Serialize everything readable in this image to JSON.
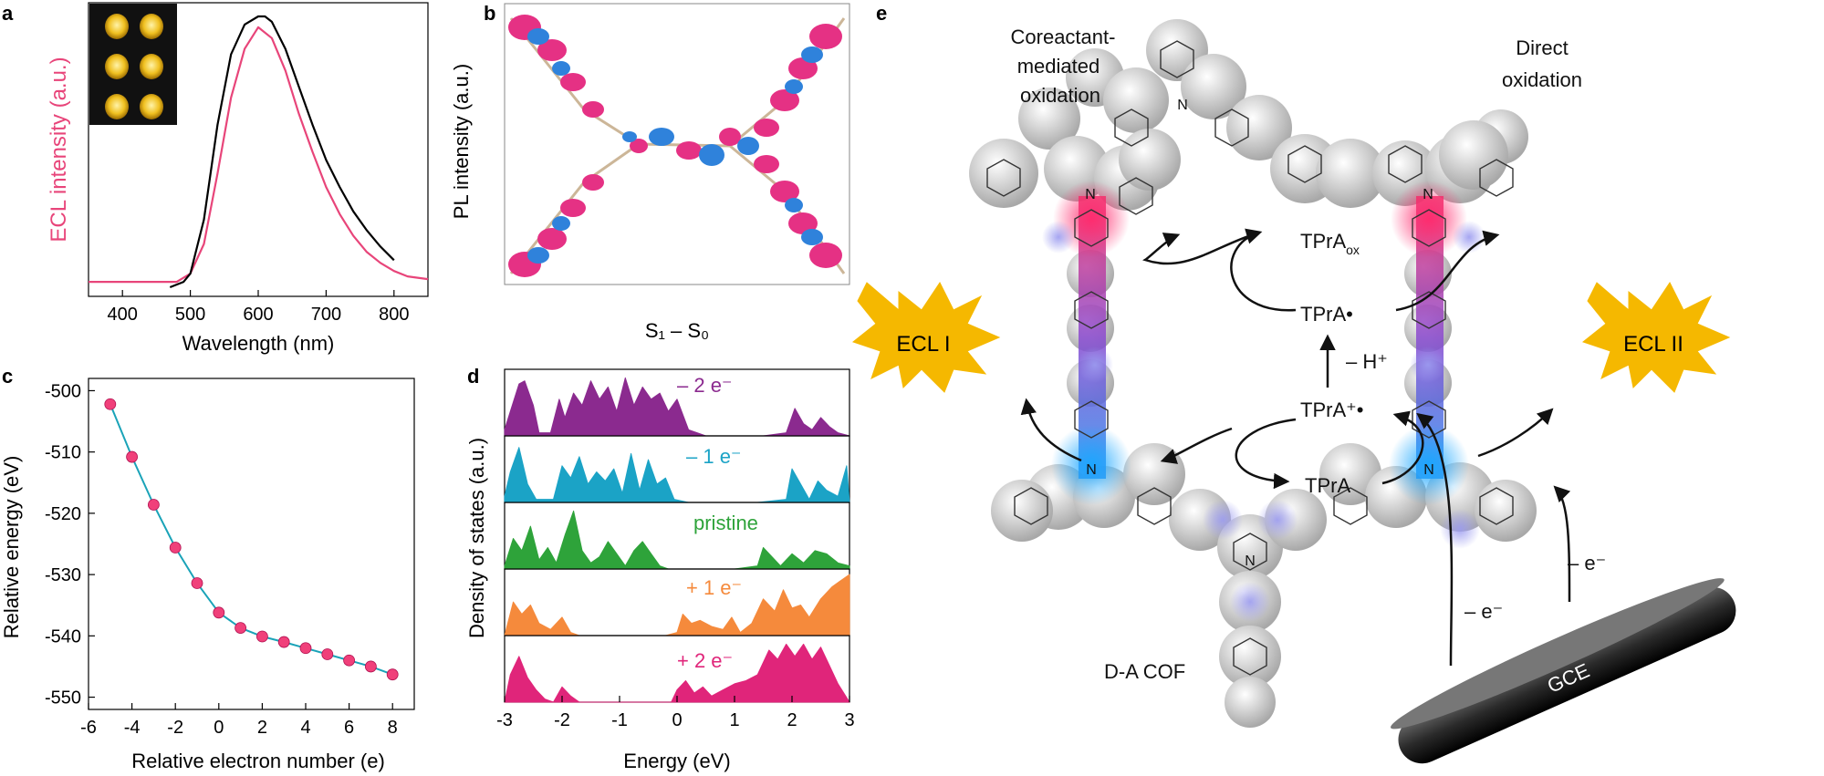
{
  "panels": {
    "a": "a",
    "b": "b",
    "c": "c",
    "d": "d",
    "e": "e"
  },
  "panel_b": {
    "ylabel": "PL intensity (a.u.)",
    "caption": "S₁ – S₀"
  },
  "panel_e": {
    "left_label": "Coreactant-\nmediated\noxidation",
    "right_label": "Direct\noxidation",
    "ecl_left": "ECL I",
    "ecl_right": "ECL II",
    "tpra_ox": "TPrA",
    "tpra_ox_sub": "ox",
    "tpra_rad": "TPrA•",
    "minus_h": "– H⁺",
    "tpra_cation": "TPrA⁺•",
    "tpra": "TPrA",
    "minus_e_1": "– e⁻",
    "minus_e_2": "– e⁻",
    "cof_label": "D-A COF",
    "electrode": "GCE",
    "atom_N": "N",
    "accent": {
      "ecl_fill": "#f5b800",
      "donor": "#29a7e6",
      "acceptor": "#e8336b"
    }
  },
  "chart_data": [
    {
      "id": "a",
      "type": "line",
      "xlabel": "Wavelength (nm)",
      "ylabel": "ECL intensity (a.u.)",
      "xlim": [
        350,
        850
      ],
      "xticks": [
        400,
        500,
        600,
        700,
        800
      ],
      "series": [
        {
          "color": "#e8457a",
          "x": [
            350,
            400,
            450,
            480,
            500,
            520,
            540,
            560,
            580,
            600,
            620,
            640,
            660,
            680,
            700,
            720,
            740,
            760,
            780,
            800,
            820,
            850
          ],
          "y": [
            0.02,
            0.02,
            0.02,
            0.02,
            0.05,
            0.16,
            0.42,
            0.7,
            0.88,
            0.96,
            0.92,
            0.8,
            0.64,
            0.5,
            0.37,
            0.27,
            0.19,
            0.13,
            0.09,
            0.06,
            0.04,
            0.03
          ]
        },
        {
          "color": "#000000",
          "x": [
            470,
            490,
            500,
            520,
            540,
            560,
            580,
            600,
            610,
            620,
            640,
            660,
            680,
            700,
            720,
            740,
            760,
            780,
            800
          ],
          "y": [
            0.0,
            0.02,
            0.05,
            0.25,
            0.6,
            0.86,
            0.97,
            1.0,
            1.0,
            0.98,
            0.88,
            0.74,
            0.6,
            0.47,
            0.37,
            0.28,
            0.21,
            0.15,
            0.1
          ]
        }
      ]
    },
    {
      "id": "c",
      "type": "line",
      "xlabel": "Relative electron number (e)",
      "ylabel": "Relative energy (eV)",
      "xlim": [
        -6,
        9
      ],
      "ylim": [
        -552,
        -498
      ],
      "xticks": [
        -6,
        -4,
        -2,
        0,
        2,
        4,
        6,
        8
      ],
      "yticks": [
        -500,
        -510,
        -520,
        -530,
        -540,
        -550
      ],
      "series": [
        {
          "color": "#1aa3b8",
          "marker_color": "#f0407a",
          "x": [
            -5,
            -4,
            -3,
            -2,
            -1,
            0,
            1,
            2,
            3,
            4,
            5,
            6,
            7,
            8
          ],
          "y": [
            -502.2,
            -510.8,
            -518.6,
            -525.6,
            -531.4,
            -536.2,
            -538.7,
            -540.1,
            -541.0,
            -542.0,
            -543.0,
            -544.0,
            -545.0,
            -546.3
          ]
        }
      ]
    },
    {
      "id": "d",
      "type": "area",
      "xlabel": "Energy (eV)",
      "ylabel": "Density of states (a.u.)",
      "xlim": [
        -3,
        3
      ],
      "xticks": [
        -3,
        -2,
        -1,
        0,
        1,
        2,
        3
      ],
      "series": [
        {
          "name": "– 2 e⁻",
          "color": "#8b2a8f",
          "x": [
            -3,
            -2.9,
            -2.75,
            -2.65,
            -2.5,
            -2.4,
            -2.2,
            -2.05,
            -1.95,
            -1.8,
            -1.65,
            -1.5,
            -1.35,
            -1.2,
            -1.05,
            -0.9,
            -0.75,
            -0.6,
            -0.45,
            -0.3,
            -0.15,
            0,
            0.2,
            0.5,
            1.0,
            1.5,
            1.9,
            2.05,
            2.2,
            2.35,
            2.5,
            2.65,
            2.8,
            3
          ],
          "y": [
            0.1,
            0.4,
            0.85,
            0.9,
            0.5,
            0.05,
            0.05,
            0.6,
            0.3,
            0.7,
            0.5,
            0.9,
            0.6,
            0.8,
            0.4,
            0.95,
            0.5,
            0.8,
            0.6,
            0.7,
            0.4,
            0.6,
            0.1,
            0.0,
            0.0,
            0.0,
            0.05,
            0.45,
            0.2,
            0.1,
            0.3,
            0.15,
            0.05,
            0.0
          ]
        },
        {
          "name": "– 1 e⁻",
          "color": "#1ba3c6",
          "x": [
            -3,
            -2.9,
            -2.75,
            -2.6,
            -2.45,
            -2.3,
            -2.15,
            -2.0,
            -1.85,
            -1.7,
            -1.55,
            -1.4,
            -1.25,
            -1.1,
            -0.95,
            -0.8,
            -0.65,
            -0.5,
            -0.35,
            -0.2,
            -0.05,
            0.2,
            0.6,
            1.0,
            1.4,
            1.9,
            2.0,
            2.15,
            2.3,
            2.45,
            2.6,
            2.8,
            2.95,
            3
          ],
          "y": [
            0.1,
            0.5,
            0.9,
            0.3,
            0.05,
            0.05,
            0.05,
            0.6,
            0.4,
            0.75,
            0.3,
            0.5,
            0.35,
            0.55,
            0.15,
            0.8,
            0.2,
            0.7,
            0.3,
            0.4,
            0.05,
            0.0,
            0.0,
            0.0,
            0.0,
            0.05,
            0.55,
            0.3,
            0.05,
            0.35,
            0.2,
            0.1,
            0.6,
            0.0
          ]
        },
        {
          "name": "pristine",
          "color": "#2ea33a",
          "x": [
            -3,
            -2.85,
            -2.7,
            -2.55,
            -2.4,
            -2.25,
            -2.1,
            -1.95,
            -1.8,
            -1.65,
            -1.5,
            -1.35,
            -1.2,
            -1.05,
            -0.9,
            -0.75,
            -0.6,
            -0.45,
            -0.3,
            -0.15,
            0,
            0.5,
            1.0,
            1.4,
            1.5,
            1.65,
            1.8,
            2.0,
            2.2,
            2.4,
            2.6,
            2.8,
            3
          ],
          "y": [
            0.05,
            0.5,
            0.3,
            0.7,
            0.15,
            0.35,
            0.1,
            0.55,
            0.95,
            0.3,
            0.1,
            0.2,
            0.45,
            0.25,
            0.05,
            0.3,
            0.45,
            0.25,
            0.05,
            0.0,
            0.0,
            0.0,
            0.0,
            0.05,
            0.35,
            0.2,
            0.05,
            0.25,
            0.1,
            0.3,
            0.25,
            0.1,
            0.05
          ]
        },
        {
          "name": "+ 1 e⁻",
          "color": "#f58a3c",
          "x": [
            -3,
            -2.85,
            -2.7,
            -2.55,
            -2.4,
            -2.2,
            -2.0,
            -1.85,
            -1.7,
            -1.4,
            -1.0,
            -0.5,
            -0.2,
            0.0,
            0.1,
            0.25,
            0.4,
            0.6,
            0.8,
            0.95,
            1.1,
            1.3,
            1.5,
            1.7,
            1.85,
            2.0,
            2.15,
            2.3,
            2.5,
            2.7,
            2.85,
            3
          ],
          "y": [
            0.0,
            0.55,
            0.35,
            0.5,
            0.2,
            0.1,
            0.3,
            0.05,
            0.0,
            0.0,
            0.0,
            0.0,
            0.0,
            0.05,
            0.35,
            0.2,
            0.25,
            0.15,
            0.1,
            0.3,
            0.05,
            0.2,
            0.6,
            0.4,
            0.75,
            0.45,
            0.5,
            0.3,
            0.6,
            0.8,
            0.9,
            1.0
          ]
        },
        {
          "name": "+ 2 e⁻",
          "color": "#e0257a",
          "x": [
            -3,
            -2.9,
            -2.75,
            -2.6,
            -2.45,
            -2.3,
            -2.15,
            -2.0,
            -1.85,
            -1.7,
            -1.4,
            -1.0,
            -0.5,
            -0.1,
            0.0,
            0.15,
            0.3,
            0.45,
            0.6,
            0.8,
            1.0,
            1.2,
            1.4,
            1.6,
            1.75,
            1.9,
            2.05,
            2.2,
            2.35,
            2.5,
            2.65,
            2.8,
            3
          ],
          "y": [
            0.0,
            0.45,
            0.75,
            0.4,
            0.2,
            0.05,
            0.0,
            0.25,
            0.1,
            0.0,
            0.0,
            0.0,
            0.0,
            0.0,
            0.2,
            0.35,
            0.15,
            0.25,
            0.1,
            0.2,
            0.3,
            0.35,
            0.45,
            0.85,
            0.7,
            0.95,
            0.75,
            0.95,
            0.7,
            0.9,
            0.6,
            0.3,
            0.0
          ]
        }
      ]
    }
  ]
}
